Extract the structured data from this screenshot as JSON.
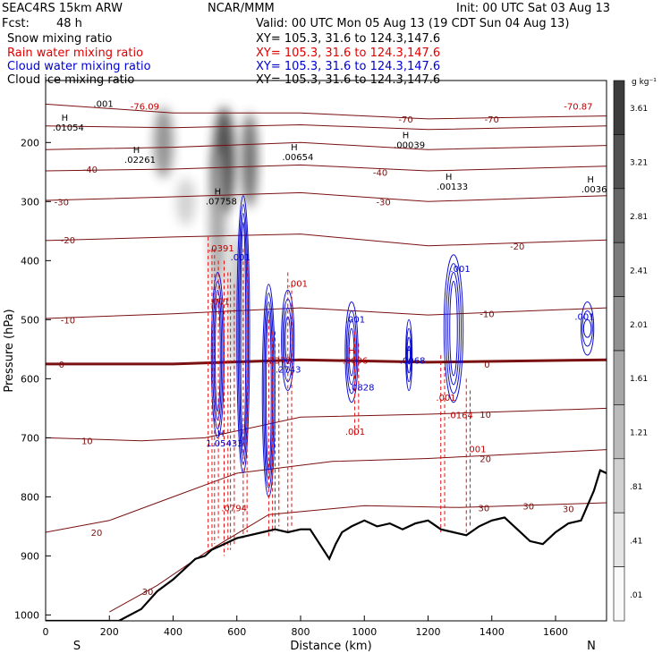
{
  "header": {
    "model": "SEAC4RS 15km ARW",
    "org": "NCAR/MMM",
    "init": "Init: 00 UTC Sat 03 Aug 13",
    "fcst_label": "Fcst:",
    "fcst_value": "48 h",
    "valid": "Valid: 00 UTC Mon 05 Aug 13 (19 CDT Sun 04 Aug 13)",
    "fields": [
      {
        "name": "Snow mixing ratio",
        "xy": "XY= 105.3, 31.6 to 124.3,147.6",
        "color": "#000000"
      },
      {
        "name": "Rain water mixing ratio",
        "xy": "XY= 105.3, 31.6 to 124.3,147.6",
        "color": "#e00000"
      },
      {
        "name": "Cloud water mixing ratio",
        "xy": "XY= 105.3, 31.6 to 124.3,147.6",
        "color": "#0000d0"
      },
      {
        "name": "Cloud ice mixing ratio",
        "xy": "XY= 105.3, 31.6 to 124.3,147.6",
        "color": "#000000"
      }
    ]
  },
  "colorbar": {
    "unit_label": "g kg⁻¹",
    "ticks": [
      "3.61",
      "3.21",
      "2.81",
      "2.41",
      "2.01",
      "1.61",
      "1.21",
      ".81",
      ".41",
      ".01"
    ]
  },
  "chart_data": {
    "type": "cross-section",
    "xlabel": "Distance (km)",
    "ylabel": "Pressure (hPa)",
    "xlim": [
      0,
      1760
    ],
    "ylim": [
      1010,
      95
    ],
    "x_ticks": [
      0,
      200,
      400,
      600,
      800,
      1000,
      1200,
      1400,
      1600
    ],
    "y_ticks": [
      200,
      300,
      400,
      500,
      600,
      700,
      800,
      900,
      1000
    ],
    "end_labels": {
      "left": "S",
      "right": "N"
    },
    "temperature_labels": [
      {
        "x": 70,
        "p": 500,
        "t": "-10"
      },
      {
        "x": 70,
        "p": 365,
        "t": "-20"
      },
      {
        "x": 50,
        "p": 300,
        "t": "-30"
      },
      {
        "x": 140,
        "p": 245,
        "t": "-40"
      },
      {
        "x": 50,
        "p": 575,
        "t": "0"
      },
      {
        "x": 1385,
        "p": 490,
        "t": "-10"
      },
      {
        "x": 1480,
        "p": 375,
        "t": "-20"
      },
      {
        "x": 1060,
        "p": 300,
        "t": "-30"
      },
      {
        "x": 1050,
        "p": 250,
        "t": "-40"
      },
      {
        "x": 1130,
        "p": 160,
        "t": "-70"
      },
      {
        "x": 1400,
        "p": 160,
        "t": "-70"
      },
      {
        "x": 1380,
        "p": 660,
        "t": "10"
      },
      {
        "x": 1380,
        "p": 735,
        "t": "20"
      },
      {
        "x": 1375,
        "p": 818,
        "t": "30"
      },
      {
        "x": 1515,
        "p": 815,
        "t": "30"
      },
      {
        "x": 1640,
        "p": 820,
        "t": "30"
      },
      {
        "x": 160,
        "p": 860,
        "t": "20"
      },
      {
        "x": 130,
        "p": 705,
        "t": "10"
      },
      {
        "x": 320,
        "p": 960,
        "t": "30"
      },
      {
        "x": 1385,
        "p": 575,
        "t": "0"
      }
    ],
    "max_labels": [
      {
        "x": 60,
        "p": 175,
        "h": "H",
        "v": ".01054",
        "color": "#000000"
      },
      {
        "x": 285,
        "p": 230,
        "h": "H",
        "v": ".02261",
        "color": "#000000"
      },
      {
        "x": 780,
        "p": 225,
        "h": "H",
        "v": ".00654",
        "color": "#000000"
      },
      {
        "x": 1130,
        "p": 205,
        "h": "H",
        "v": ".00039",
        "color": "#000000"
      },
      {
        "x": 1265,
        "p": 275,
        "h": "H",
        "v": ".00133",
        "color": "#000000"
      },
      {
        "x": 1710,
        "p": 280,
        "h": "H",
        "v": ".0036",
        "color": "#000000"
      },
      {
        "x": 540,
        "p": 300,
        "h": "H",
        "v": ".07758",
        "color": "#000000"
      },
      {
        "x": 550,
        "p": 710,
        "h": "H",
        "v": "1.05433",
        "color": "#0000d0"
      },
      {
        "x": 1140,
        "p": 570,
        "h": "H",
        "v": ".0068",
        "color": "#0000d0"
      },
      {
        "x": 960,
        "p": 570,
        "h": "H",
        "v": ".0096",
        "color": "#c00000"
      },
      {
        "x": 1290,
        "p": 662,
        "h": "",
        "v": ".0164",
        "color": "#c00000"
      },
      {
        "x": 750,
        "p": 585,
        "h": "",
        "v": ".2743",
        "color": "#0000d0"
      },
      {
        "x": 720,
        "p": 570,
        "h": "",
        "v": ".2372",
        "color": "#c00000"
      },
      {
        "x": 980,
        "p": 615,
        "h": "",
        "v": ".0828",
        "color": "#0000d0"
      },
      {
        "x": 1245,
        "p": 633,
        "h": "",
        "v": ".001",
        "color": "#c00000"
      },
      {
        "x": 1680,
        "p": 496,
        "h": "",
        "v": ".001",
        "color": "#0000d0"
      },
      {
        "x": 1290,
        "p": 415,
        "h": "",
        "v": ".001",
        "color": "#0000d0"
      },
      {
        "x": 960,
        "p": 500,
        "h": "",
        "v": ".001",
        "color": "#0000d0"
      },
      {
        "x": 1340,
        "p": 720,
        "h": "",
        "v": ".001",
        "color": "#c00000"
      },
      {
        "x": 960,
        "p": 690,
        "h": "",
        "v": ".001",
        "color": "#c00000"
      },
      {
        "x": 780,
        "p": 440,
        "h": "",
        "v": ".001",
        "color": "#c00000"
      },
      {
        "x": 600,
        "p": 395,
        "h": "",
        "v": ".001",
        "color": "#0000d0"
      },
      {
        "x": 540,
        "p": 380,
        "h": "",
        "v": ".0391",
        "color": "#c00000"
      },
      {
        "x": 535,
        "p": 470,
        "h": "",
        "v": ".001",
        "color": "#c00000"
      },
      {
        "x": 580,
        "p": 820,
        "h": "",
        "v": ".0794",
        "color": "#c00000"
      },
      {
        "x": 170,
        "p": 135,
        "h": "",
        "v": ".001",
        "color": "#000000"
      },
      {
        "x": 300,
        "p": 140,
        "h": "",
        "v": "-76.09",
        "color": "#c00000"
      },
      {
        "x": 1660,
        "p": 140,
        "h": "",
        "v": "-70.87",
        "color": "#c00000"
      }
    ],
    "terrain": [
      [
        0,
        1010
      ],
      [
        230,
        1010
      ],
      [
        300,
        990
      ],
      [
        350,
        960
      ],
      [
        400,
        940
      ],
      [
        440,
        920
      ],
      [
        470,
        905
      ],
      [
        500,
        900
      ],
      [
        520,
        890
      ],
      [
        560,
        880
      ],
      [
        600,
        870
      ],
      [
        640,
        865
      ],
      [
        680,
        860
      ],
      [
        720,
        855
      ],
      [
        760,
        860
      ],
      [
        800,
        855
      ],
      [
        830,
        855
      ],
      [
        860,
        880
      ],
      [
        890,
        905
      ],
      [
        910,
        880
      ],
      [
        930,
        860
      ],
      [
        960,
        850
      ],
      [
        1000,
        840
      ],
      [
        1040,
        850
      ],
      [
        1080,
        845
      ],
      [
        1120,
        855
      ],
      [
        1160,
        845
      ],
      [
        1200,
        840
      ],
      [
        1240,
        855
      ],
      [
        1280,
        860
      ],
      [
        1320,
        865
      ],
      [
        1360,
        850
      ],
      [
        1400,
        840
      ],
      [
        1440,
        835
      ],
      [
        1480,
        855
      ],
      [
        1520,
        875
      ],
      [
        1560,
        880
      ],
      [
        1600,
        860
      ],
      [
        1640,
        845
      ],
      [
        1680,
        840
      ],
      [
        1720,
        790
      ],
      [
        1740,
        755
      ],
      [
        1760,
        760
      ]
    ],
    "isotherms": [
      {
        "t": "-70",
        "pts": [
          [
            0,
            135
          ],
          [
            400,
            150
          ],
          [
            800,
            150
          ],
          [
            1200,
            160
          ],
          [
            1760,
            155
          ]
        ]
      },
      {
        "t": "-60",
        "pts": [
          [
            0,
            172
          ],
          [
            400,
            175
          ],
          [
            800,
            170
          ],
          [
            1200,
            178
          ],
          [
            1760,
            172
          ]
        ]
      },
      {
        "t": "-50",
        "pts": [
          [
            0,
            212
          ],
          [
            400,
            208
          ],
          [
            800,
            200
          ],
          [
            1200,
            212
          ],
          [
            1760,
            205
          ]
        ]
      },
      {
        "t": "-40",
        "pts": [
          [
            0,
            248
          ],
          [
            400,
            245
          ],
          [
            800,
            238
          ],
          [
            1200,
            248
          ],
          [
            1760,
            240
          ]
        ]
      },
      {
        "t": "-30",
        "pts": [
          [
            0,
            298
          ],
          [
            400,
            292
          ],
          [
            800,
            285
          ],
          [
            1200,
            300
          ],
          [
            1760,
            290
          ]
        ]
      },
      {
        "t": "-20",
        "pts": [
          [
            0,
            366
          ],
          [
            400,
            360
          ],
          [
            800,
            355
          ],
          [
            1200,
            375
          ],
          [
            1760,
            365
          ]
        ]
      },
      {
        "t": "-10",
        "pts": [
          [
            0,
            498
          ],
          [
            400,
            490
          ],
          [
            800,
            480
          ],
          [
            1200,
            492
          ],
          [
            1760,
            480
          ]
        ]
      },
      {
        "t": "0",
        "pts": [
          [
            0,
            575
          ],
          [
            400,
            575
          ],
          [
            800,
            568
          ],
          [
            1200,
            572
          ],
          [
            1760,
            568
          ]
        ]
      },
      {
        "t": "10",
        "pts": [
          [
            0,
            700
          ],
          [
            300,
            705
          ],
          [
            500,
            700
          ],
          [
            800,
            665
          ],
          [
            1200,
            660
          ],
          [
            1760,
            650
          ]
        ]
      },
      {
        "t": "20",
        "pts": [
          [
            0,
            860
          ],
          [
            200,
            840
          ],
          [
            400,
            800
          ],
          [
            600,
            760
          ],
          [
            900,
            740
          ],
          [
            1200,
            735
          ],
          [
            1760,
            720
          ]
        ]
      },
      {
        "t": "30",
        "pts": [
          [
            200,
            995
          ],
          [
            350,
            950
          ],
          [
            500,
            895
          ],
          [
            700,
            830
          ],
          [
            1000,
            815
          ],
          [
            1300,
            818
          ],
          [
            1760,
            810
          ]
        ]
      }
    ],
    "shading": [
      {
        "x": 370,
        "p": 200,
        "rx": 30,
        "rp": 60,
        "v": 2.0
      },
      {
        "x": 560,
        "p": 230,
        "rx": 35,
        "rp": 90,
        "v": 3.5
      },
      {
        "x": 640,
        "p": 230,
        "rx": 25,
        "rp": 80,
        "v": 2.8
      },
      {
        "x": 540,
        "p": 330,
        "rx": 25,
        "rp": 120,
        "v": 1.6
      },
      {
        "x": 600,
        "p": 470,
        "rx": 25,
        "rp": 120,
        "v": 0.9
      },
      {
        "x": 440,
        "p": 300,
        "rx": 30,
        "rp": 40,
        "v": 0.6
      }
    ]
  }
}
